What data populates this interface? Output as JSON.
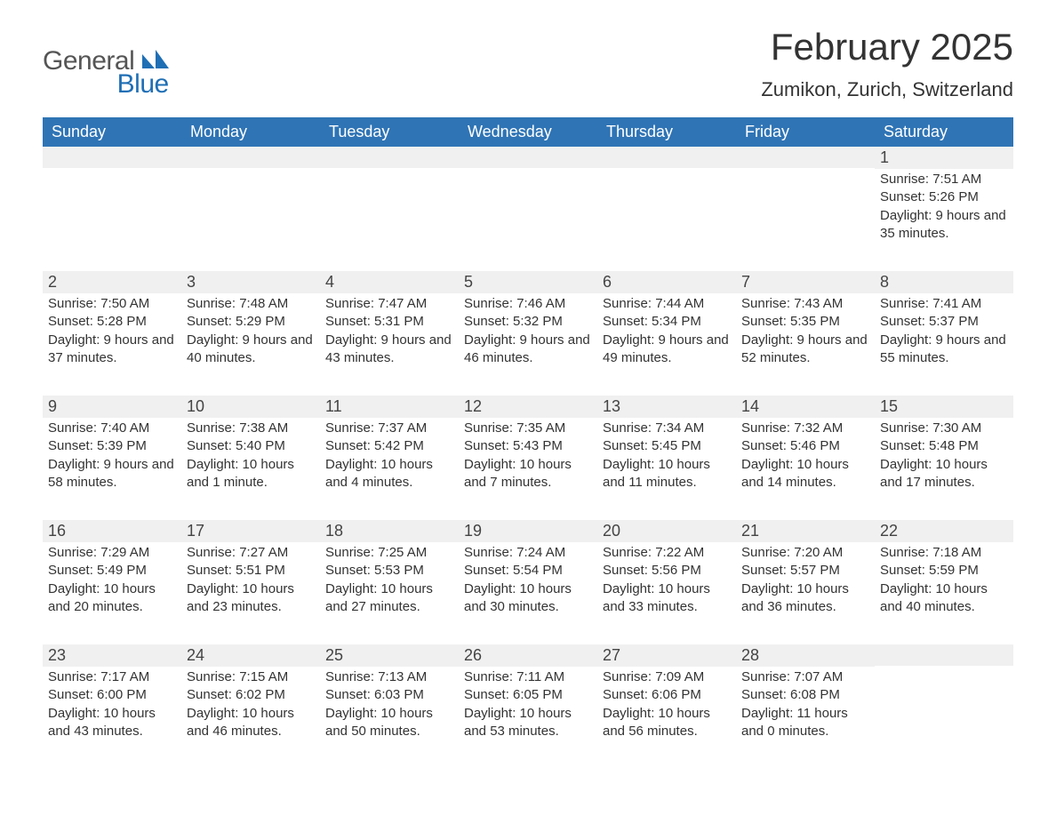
{
  "brand": {
    "word1": "General",
    "word2": "Blue",
    "colors": {
      "gray": "#555555",
      "blue": "#1f6fb5"
    }
  },
  "title": "February 2025",
  "location": "Zumikon, Zurich, Switzerland",
  "theme": {
    "header_bg": "#2f74b5",
    "header_text": "#ffffff",
    "stripe_bg": "#f0f0f0",
    "row_separator": "#1f6fb5",
    "body_text": "#333333",
    "font_family": "Segoe UI / Arial",
    "title_fontsize_pt": 32,
    "location_fontsize_pt": 16,
    "header_fontsize_pt": 14,
    "daynum_fontsize_pt": 14,
    "details_fontsize_pt": 11
  },
  "week_start": "Sunday",
  "columns": [
    "Sunday",
    "Monday",
    "Tuesday",
    "Wednesday",
    "Thursday",
    "Friday",
    "Saturday"
  ],
  "weeks": [
    [
      null,
      null,
      null,
      null,
      null,
      null,
      {
        "n": "1",
        "sunrise": "Sunrise: 7:51 AM",
        "sunset": "Sunset: 5:26 PM",
        "daylight": "Daylight: 9 hours and 35 minutes."
      }
    ],
    [
      {
        "n": "2",
        "sunrise": "Sunrise: 7:50 AM",
        "sunset": "Sunset: 5:28 PM",
        "daylight": "Daylight: 9 hours and 37 minutes."
      },
      {
        "n": "3",
        "sunrise": "Sunrise: 7:48 AM",
        "sunset": "Sunset: 5:29 PM",
        "daylight": "Daylight: 9 hours and 40 minutes."
      },
      {
        "n": "4",
        "sunrise": "Sunrise: 7:47 AM",
        "sunset": "Sunset: 5:31 PM",
        "daylight": "Daylight: 9 hours and 43 minutes."
      },
      {
        "n": "5",
        "sunrise": "Sunrise: 7:46 AM",
        "sunset": "Sunset: 5:32 PM",
        "daylight": "Daylight: 9 hours and 46 minutes."
      },
      {
        "n": "6",
        "sunrise": "Sunrise: 7:44 AM",
        "sunset": "Sunset: 5:34 PM",
        "daylight": "Daylight: 9 hours and 49 minutes."
      },
      {
        "n": "7",
        "sunrise": "Sunrise: 7:43 AM",
        "sunset": "Sunset: 5:35 PM",
        "daylight": "Daylight: 9 hours and 52 minutes."
      },
      {
        "n": "8",
        "sunrise": "Sunrise: 7:41 AM",
        "sunset": "Sunset: 5:37 PM",
        "daylight": "Daylight: 9 hours and 55 minutes."
      }
    ],
    [
      {
        "n": "9",
        "sunrise": "Sunrise: 7:40 AM",
        "sunset": "Sunset: 5:39 PM",
        "daylight": "Daylight: 9 hours and 58 minutes."
      },
      {
        "n": "10",
        "sunrise": "Sunrise: 7:38 AM",
        "sunset": "Sunset: 5:40 PM",
        "daylight": "Daylight: 10 hours and 1 minute."
      },
      {
        "n": "11",
        "sunrise": "Sunrise: 7:37 AM",
        "sunset": "Sunset: 5:42 PM",
        "daylight": "Daylight: 10 hours and 4 minutes."
      },
      {
        "n": "12",
        "sunrise": "Sunrise: 7:35 AM",
        "sunset": "Sunset: 5:43 PM",
        "daylight": "Daylight: 10 hours and 7 minutes."
      },
      {
        "n": "13",
        "sunrise": "Sunrise: 7:34 AM",
        "sunset": "Sunset: 5:45 PM",
        "daylight": "Daylight: 10 hours and 11 minutes."
      },
      {
        "n": "14",
        "sunrise": "Sunrise: 7:32 AM",
        "sunset": "Sunset: 5:46 PM",
        "daylight": "Daylight: 10 hours and 14 minutes."
      },
      {
        "n": "15",
        "sunrise": "Sunrise: 7:30 AM",
        "sunset": "Sunset: 5:48 PM",
        "daylight": "Daylight: 10 hours and 17 minutes."
      }
    ],
    [
      {
        "n": "16",
        "sunrise": "Sunrise: 7:29 AM",
        "sunset": "Sunset: 5:49 PM",
        "daylight": "Daylight: 10 hours and 20 minutes."
      },
      {
        "n": "17",
        "sunrise": "Sunrise: 7:27 AM",
        "sunset": "Sunset: 5:51 PM",
        "daylight": "Daylight: 10 hours and 23 minutes."
      },
      {
        "n": "18",
        "sunrise": "Sunrise: 7:25 AM",
        "sunset": "Sunset: 5:53 PM",
        "daylight": "Daylight: 10 hours and 27 minutes."
      },
      {
        "n": "19",
        "sunrise": "Sunrise: 7:24 AM",
        "sunset": "Sunset: 5:54 PM",
        "daylight": "Daylight: 10 hours and 30 minutes."
      },
      {
        "n": "20",
        "sunrise": "Sunrise: 7:22 AM",
        "sunset": "Sunset: 5:56 PM",
        "daylight": "Daylight: 10 hours and 33 minutes."
      },
      {
        "n": "21",
        "sunrise": "Sunrise: 7:20 AM",
        "sunset": "Sunset: 5:57 PM",
        "daylight": "Daylight: 10 hours and 36 minutes."
      },
      {
        "n": "22",
        "sunrise": "Sunrise: 7:18 AM",
        "sunset": "Sunset: 5:59 PM",
        "daylight": "Daylight: 10 hours and 40 minutes."
      }
    ],
    [
      {
        "n": "23",
        "sunrise": "Sunrise: 7:17 AM",
        "sunset": "Sunset: 6:00 PM",
        "daylight": "Daylight: 10 hours and 43 minutes."
      },
      {
        "n": "24",
        "sunrise": "Sunrise: 7:15 AM",
        "sunset": "Sunset: 6:02 PM",
        "daylight": "Daylight: 10 hours and 46 minutes."
      },
      {
        "n": "25",
        "sunrise": "Sunrise: 7:13 AM",
        "sunset": "Sunset: 6:03 PM",
        "daylight": "Daylight: 10 hours and 50 minutes."
      },
      {
        "n": "26",
        "sunrise": "Sunrise: 7:11 AM",
        "sunset": "Sunset: 6:05 PM",
        "daylight": "Daylight: 10 hours and 53 minutes."
      },
      {
        "n": "27",
        "sunrise": "Sunrise: 7:09 AM",
        "sunset": "Sunset: 6:06 PM",
        "daylight": "Daylight: 10 hours and 56 minutes."
      },
      {
        "n": "28",
        "sunrise": "Sunrise: 7:07 AM",
        "sunset": "Sunset: 6:08 PM",
        "daylight": "Daylight: 11 hours and 0 minutes."
      },
      null
    ]
  ]
}
